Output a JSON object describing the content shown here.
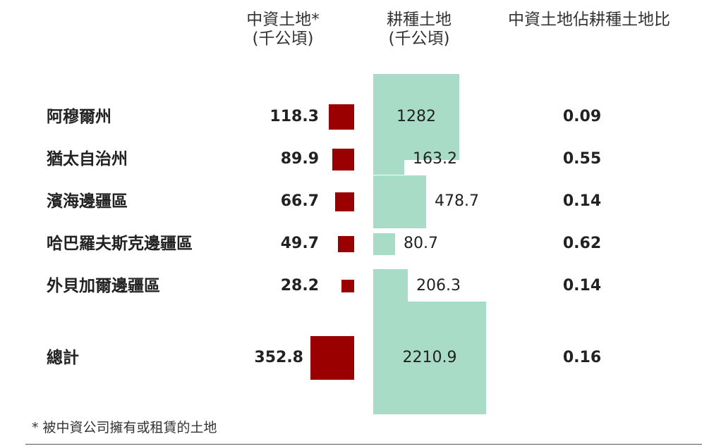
{
  "chart_data": {
    "type": "table",
    "columns": [
      {
        "label": "中資土地*\n(千公頃)"
      },
      {
        "label": "耕種土地\n(千公頃)"
      },
      {
        "label": "中資土地佔耕種土地比"
      }
    ],
    "rows": [
      {
        "region": "阿穆爾州",
        "chinese_land": "118.3",
        "arable_land": "1282",
        "ratio": "0.09"
      },
      {
        "region": "猶太自治州",
        "chinese_land": "89.9",
        "arable_land": "163.2",
        "ratio": "0.55"
      },
      {
        "region": "濱海邊疆區",
        "chinese_land": "66.7",
        "arable_land": "478.7",
        "ratio": "0.14"
      },
      {
        "region": "哈巴羅夫斯克邊疆區",
        "chinese_land": "49.7",
        "arable_land": "80.7",
        "ratio": "0.62"
      },
      {
        "region": "外貝加爾邊疆區",
        "chinese_land": "28.2",
        "arable_land": "206.3",
        "ratio": "0.14"
      }
    ],
    "total": {
      "region": "總計",
      "chinese_land": "352.8",
      "arable_land": "2210.9",
      "ratio": "0.16"
    },
    "footnote": "* 被中資公司擁有或租賃的土地",
    "colors": {
      "chinese_land": "#9b0000",
      "arable_land": "#a8dcc6"
    }
  }
}
